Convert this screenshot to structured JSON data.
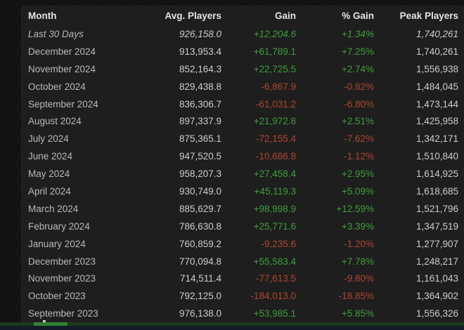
{
  "colors": {
    "positive_text": "#3f9e3a",
    "negative_text": "#b0462f",
    "table_background": "#1e1e1e",
    "page_background": "#131110",
    "seekbar_track": "#1c3a1c",
    "seekbar_played": "#2f8232",
    "bottom_strip": "#131a29"
  },
  "table": {
    "headers": {
      "month": "Month",
      "avg": "Avg. Players",
      "gain": "Gain",
      "pct": "% Gain",
      "peak": "Peak Players"
    },
    "rows": [
      {
        "month": "Last 30 Days",
        "avg": "926,158.0",
        "gain": "+12,204.6",
        "pct": "+1.34%",
        "peak": "1,740,261",
        "trend": "up"
      },
      {
        "month": "December 2024",
        "avg": "913,953.4",
        "gain": "+61,789.1",
        "pct": "+7.25%",
        "peak": "1,740,261",
        "trend": "up"
      },
      {
        "month": "November 2024",
        "avg": "852,164.3",
        "gain": "+22,725.5",
        "pct": "+2.74%",
        "peak": "1,556,938",
        "trend": "up"
      },
      {
        "month": "October 2024",
        "avg": "829,438.8",
        "gain": "-6,867.9",
        "pct": "-0.82%",
        "peak": "1,484,045",
        "trend": "down"
      },
      {
        "month": "September 2024",
        "avg": "836,306.7",
        "gain": "-61,031.2",
        "pct": "-6.80%",
        "peak": "1,473,144",
        "trend": "down"
      },
      {
        "month": "August 2024",
        "avg": "897,337.9",
        "gain": "+21,972.8",
        "pct": "+2.51%",
        "peak": "1,425,958",
        "trend": "up"
      },
      {
        "month": "July 2024",
        "avg": "875,365.1",
        "gain": "-72,155.4",
        "pct": "-7.62%",
        "peak": "1,342,171",
        "trend": "down"
      },
      {
        "month": "June 2024",
        "avg": "947,520.5",
        "gain": "-10,686.8",
        "pct": "-1.12%",
        "peak": "1,510,840",
        "trend": "down"
      },
      {
        "month": "May 2024",
        "avg": "958,207.3",
        "gain": "+27,458.4",
        "pct": "+2.95%",
        "peak": "1,614,925",
        "trend": "up"
      },
      {
        "month": "April 2024",
        "avg": "930,749.0",
        "gain": "+45,119.3",
        "pct": "+5.09%",
        "peak": "1,618,685",
        "trend": "up"
      },
      {
        "month": "March 2024",
        "avg": "885,629.7",
        "gain": "+98,998.9",
        "pct": "+12.59%",
        "peak": "1,521,796",
        "trend": "up"
      },
      {
        "month": "February 2024",
        "avg": "786,630.8",
        "gain": "+25,771.6",
        "pct": "+3.39%",
        "peak": "1,347,519",
        "trend": "up"
      },
      {
        "month": "January 2024",
        "avg": "760,859.2",
        "gain": "-9,235.6",
        "pct": "-1.20%",
        "peak": "1,277,907",
        "trend": "down"
      },
      {
        "month": "December 2023",
        "avg": "770,094.8",
        "gain": "+55,583.4",
        "pct": "+7.78%",
        "peak": "1,248,217",
        "trend": "up"
      },
      {
        "month": "November 2023",
        "avg": "714,511.4",
        "gain": "-77,613.5",
        "pct": "-9.80%",
        "peak": "1,161,043",
        "trend": "down"
      },
      {
        "month": "October 2023",
        "avg": "792,125.0",
        "gain": "-184,013.0",
        "pct": "-18.85%",
        "peak": "1,364,902",
        "trend": "down"
      },
      {
        "month": "September 2023",
        "avg": "976,138.0",
        "gain": "+53,985.1",
        "pct": "+5.85%",
        "peak": "1,556,326",
        "trend": "up"
      }
    ]
  }
}
